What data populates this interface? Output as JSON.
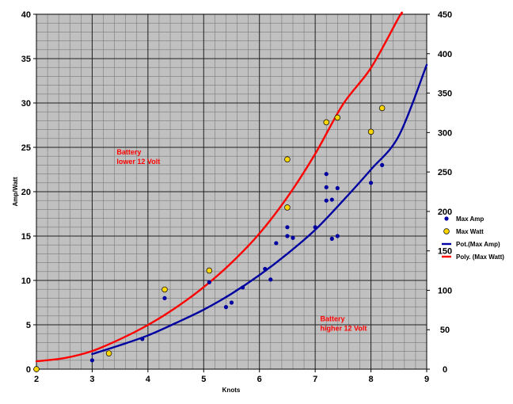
{
  "chart_data": {
    "type": "scatter",
    "xlabel": "Knots",
    "ylabel": "Amp/Watt",
    "xlim": [
      2,
      9
    ],
    "ylim_left": [
      0,
      40
    ],
    "ylim_right": [
      0,
      450
    ],
    "x_ticks": [
      "2",
      "3",
      "4",
      "5",
      "6",
      "7",
      "8",
      "9"
    ],
    "y_left_ticks": [
      "0",
      "5",
      "10",
      "15",
      "20",
      "25",
      "30",
      "35",
      "40"
    ],
    "y_right_ticks": [
      "0",
      "50",
      "100",
      "150",
      "200",
      "250",
      "300",
      "350",
      "400",
      "450"
    ],
    "grid": true,
    "legend_placement": "right",
    "series": [
      {
        "name": "Max Amp",
        "axis": "left",
        "color": "#0000a0",
        "marker": "dot",
        "x": [
          3.0,
          3.9,
          4.3,
          5.1,
          5.4,
          5.5,
          5.7,
          6.1,
          6.2,
          6.3,
          6.5,
          6.5,
          6.6,
          7.0,
          7.2,
          7.2,
          7.2,
          7.3,
          7.3,
          7.4,
          7.4,
          8.0,
          8.2
        ],
        "y": [
          1.0,
          3.4,
          8.0,
          9.8,
          7.0,
          7.5,
          9.2,
          11.3,
          10.1,
          14.2,
          15.0,
          16.0,
          14.8,
          16.0,
          22.0,
          20.5,
          19.0,
          19.1,
          14.7,
          20.4,
          15.0,
          21.0,
          23.0
        ]
      },
      {
        "name": "Max Watt",
        "axis": "right",
        "color": "#ffd700",
        "marker": "circle",
        "x": [
          2.0,
          3.3,
          4.3,
          5.1,
          6.5,
          6.5,
          7.2,
          7.4,
          8.0,
          8.2
        ],
        "y": [
          0,
          20,
          101,
          125,
          205,
          266,
          313,
          319,
          301,
          331
        ]
      },
      {
        "name": "Pot.(Max Amp)",
        "axis": "left",
        "color": "#0000a0",
        "type": "trendline",
        "x": [
          3.0,
          3.5,
          4.0,
          4.5,
          5.0,
          5.5,
          6.0,
          6.5,
          7.0,
          7.5,
          8.0,
          8.5,
          9.0
        ],
        "y": [
          1.7,
          2.7,
          3.8,
          5.2,
          6.7,
          8.5,
          10.6,
          13.0,
          15.7,
          19.0,
          22.5,
          26.3,
          34.3
        ]
      },
      {
        "name": "Poly. (Max Watt)",
        "axis": "right",
        "color": "#ff0000",
        "type": "trendline",
        "x": [
          2.0,
          2.5,
          3.0,
          3.5,
          4.0,
          4.5,
          5.0,
          5.5,
          6.0,
          6.5,
          7.0,
          7.5,
          8.0,
          8.5,
          8.55
        ],
        "y": [
          10,
          14,
          23,
          38,
          56,
          78,
          104,
          135,
          172,
          218,
          273,
          336,
          382,
          446,
          450
        ]
      }
    ],
    "annotations": [
      {
        "text_lines": [
          "Battery",
          "lower 12 Volt"
        ],
        "color": "#ff0000",
        "x": 3.44,
        "y": 24.2
      },
      {
        "text_lines": [
          "Battery",
          "higher 12 Volt"
        ],
        "color": "#ff0000",
        "x": 7.09,
        "y": 5.4
      }
    ]
  }
}
